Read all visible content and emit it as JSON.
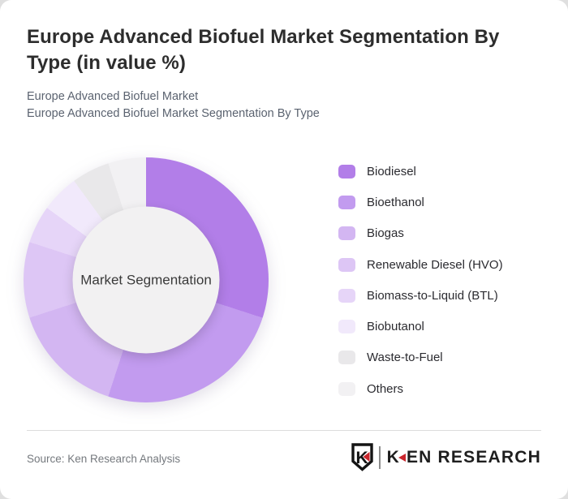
{
  "header": {
    "title": "Europe Advanced Biofuel Market Segmentation By Type (in value %)",
    "subtitle_line1": "Europe Advanced Biofuel Market",
    "subtitle_line2": "Europe Advanced Biofuel Market Segmentation By Type"
  },
  "chart_data": {
    "type": "pie",
    "variant": "donut",
    "title": "Europe Advanced Biofuel Market Segmentation By Type (in value %)",
    "unit": "value %",
    "center_label": "Market Segmentation",
    "legend_position": "right",
    "start_angle_deg": 0,
    "direction": "clockwise",
    "segments": [
      {
        "label": "Biodiesel",
        "value": 30,
        "color": "#b27ee8"
      },
      {
        "label": "Bioethanol",
        "value": 25,
        "color": "#c29bef"
      },
      {
        "label": "Biogas",
        "value": 15,
        "color": "#d3b6f2"
      },
      {
        "label": "Renewable Diesel (HVO)",
        "value": 10,
        "color": "#ddc6f5"
      },
      {
        "label": "Biomass-to-Liquid (BTL)",
        "value": 5,
        "color": "#e6d5f8"
      },
      {
        "label": "Biobutanol",
        "value": 5,
        "color": "#f1e9fb"
      },
      {
        "label": "Waste-to-Fuel",
        "value": 5,
        "color": "#e9e8ea"
      },
      {
        "label": "Others",
        "value": 5,
        "color": "#f2f1f3"
      }
    ]
  },
  "footer": {
    "source": "Source: Ken Research Analysis",
    "logo": {
      "shield_letter": "K",
      "wordmark_k": "K",
      "wordmark_rest": "EN RESEARCH",
      "accent_color": "#c9252c",
      "text_color": "#1e1e1e"
    }
  }
}
